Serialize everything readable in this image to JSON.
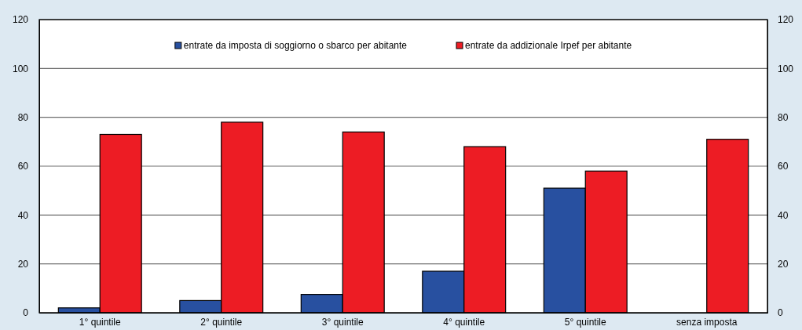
{
  "chart_data": {
    "type": "bar",
    "categories": [
      "1° quintile",
      "2° quintile",
      "3° quintile",
      "4° quintile",
      "5° quintile",
      "senza imposta"
    ],
    "series": [
      {
        "name": "entrate da imposta di soggiorno o sbarco per abitante",
        "color": "#2850a0",
        "values": [
          2,
          5,
          7.5,
          17,
          51,
          null
        ]
      },
      {
        "name": "entrate da addizionale Irpef per abitante",
        "color": "#ed1c24",
        "values": [
          73,
          78,
          74,
          68,
          58,
          71
        ]
      }
    ],
    "ylim": [
      0,
      120
    ],
    "yticks": [
      0,
      20,
      40,
      60,
      80,
      100,
      120
    ],
    "y2lim": [
      0,
      120
    ],
    "y2ticks": [
      0,
      20,
      40,
      60,
      80,
      100,
      120
    ],
    "grid": "y",
    "legend": "top"
  }
}
